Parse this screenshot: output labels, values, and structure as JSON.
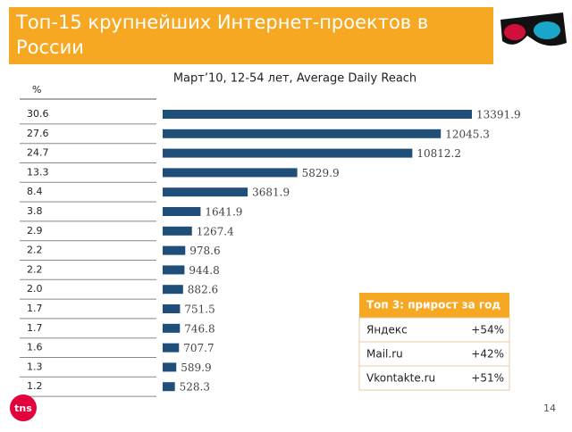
{
  "header": {
    "title": "Топ-15 крупнейших Интернет-проектов в России",
    "page_number": "14",
    "logo": "tns"
  },
  "chart_data": {
    "type": "bar",
    "subtitle": "Март’10, 12-54 лет, Average Daily Reach",
    "share_header": "%",
    "shares": [
      "30.6",
      "27.6",
      "24.7",
      "13.3",
      "8.4",
      "3.8",
      "2.9",
      "2.2",
      "2.2",
      "2.0",
      "1.7",
      "1.7",
      "1.6",
      "1.3",
      "1.2"
    ],
    "values": [
      13391.9,
      12045.3,
      10812.2,
      5829.9,
      3681.9,
      1641.9,
      1267.4,
      978.6,
      944.8,
      882.6,
      751.5,
      746.8,
      707.7,
      589.9,
      528.3
    ],
    "color": "#1f4e79",
    "xlim": [
      0,
      13400
    ]
  },
  "table": {
    "title": "Топ 3: прирост за год",
    "rows": [
      [
        "Яндекс",
        "+54%"
      ],
      [
        "Mail.ru",
        "+42%"
      ],
      [
        "Vkontakte.ru",
        "+51%"
      ]
    ]
  }
}
